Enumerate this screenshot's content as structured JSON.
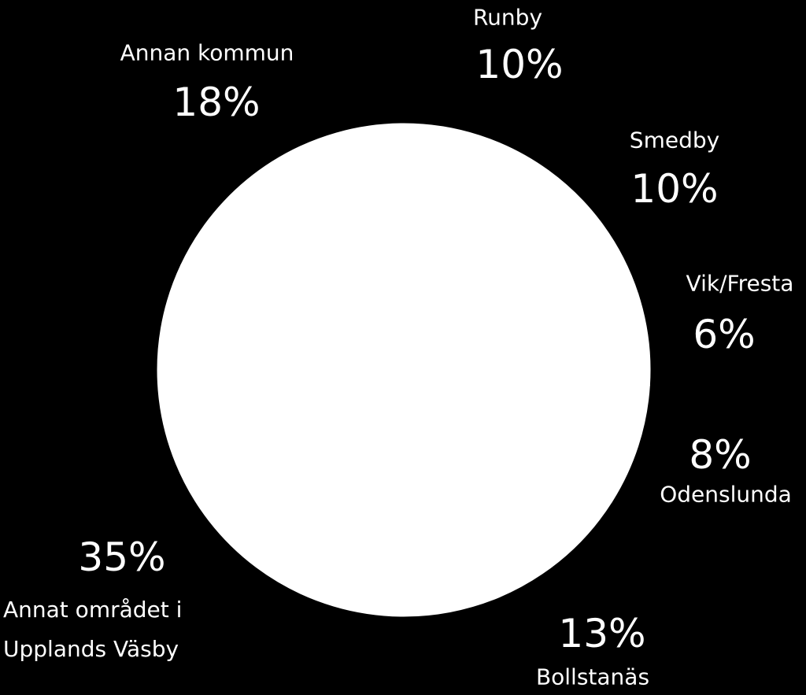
{
  "chart_data": {
    "type": "pie",
    "categories": [
      "Runby",
      "Smedby",
      "Vik/Fresta",
      "Odenslunda",
      "Bollstanäs",
      "Annat området i Upplands Väsby",
      "Annan kommun"
    ],
    "values": [
      10,
      10,
      6,
      8,
      13,
      35,
      18
    ],
    "value_labels": [
      "10%",
      "10%",
      "6%",
      "8%",
      "13%",
      "35%",
      "18%"
    ],
    "color": "#ffffff"
  }
}
